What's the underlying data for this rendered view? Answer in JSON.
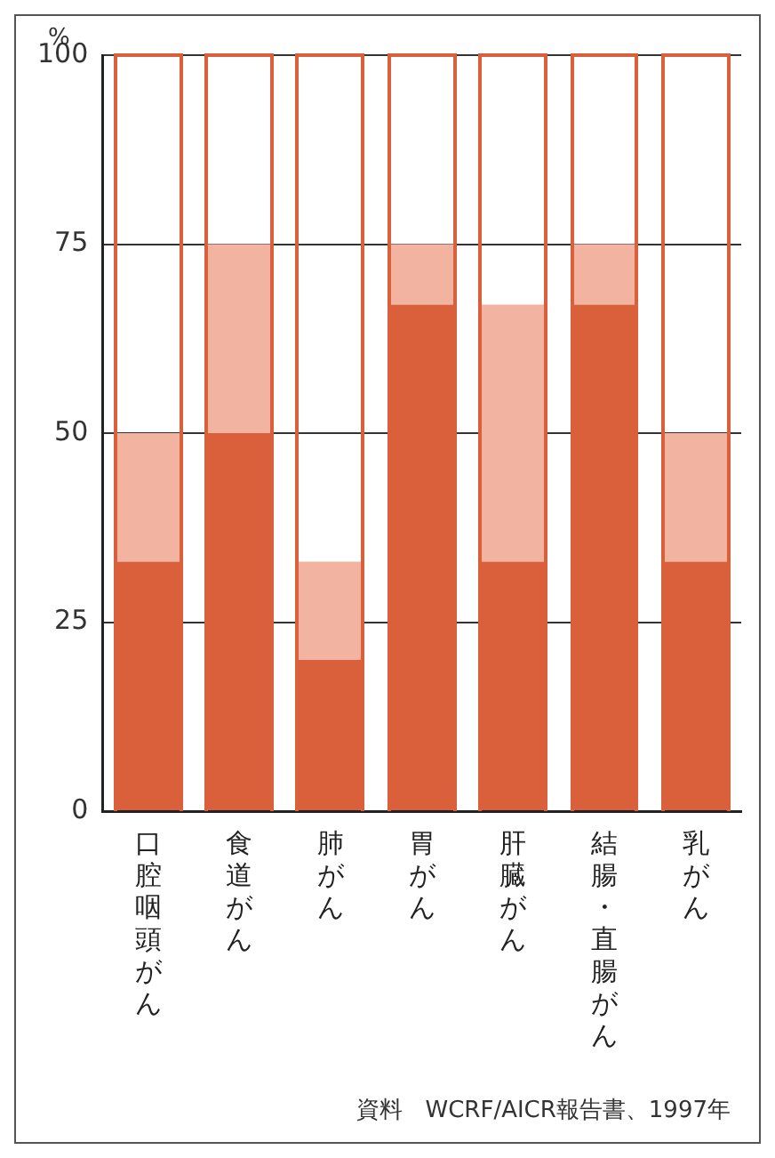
{
  "chart_data": {
    "type": "bar",
    "stacked": true,
    "ylabel": "%",
    "categories": [
      "口腔咽頭がん",
      "食道がん",
      "肺がん",
      "胃がん",
      "肝臓がん",
      "結腸・直腸がん",
      "乳がん"
    ],
    "series": [
      {
        "color": "#d9603a",
        "values": [
          33,
          50,
          20,
          67,
          33,
          67,
          33
        ]
      },
      {
        "color": "#f2b3a0",
        "values": [
          17,
          25,
          13,
          8,
          34,
          8,
          17
        ]
      }
    ],
    "ylim": [
      0,
      100
    ],
    "yticks": [
      0,
      25,
      50,
      75,
      100
    ],
    "grid": "y",
    "legend": false,
    "annotations": [
      "資料　WCRF/AICR報告書、1997年"
    ]
  }
}
